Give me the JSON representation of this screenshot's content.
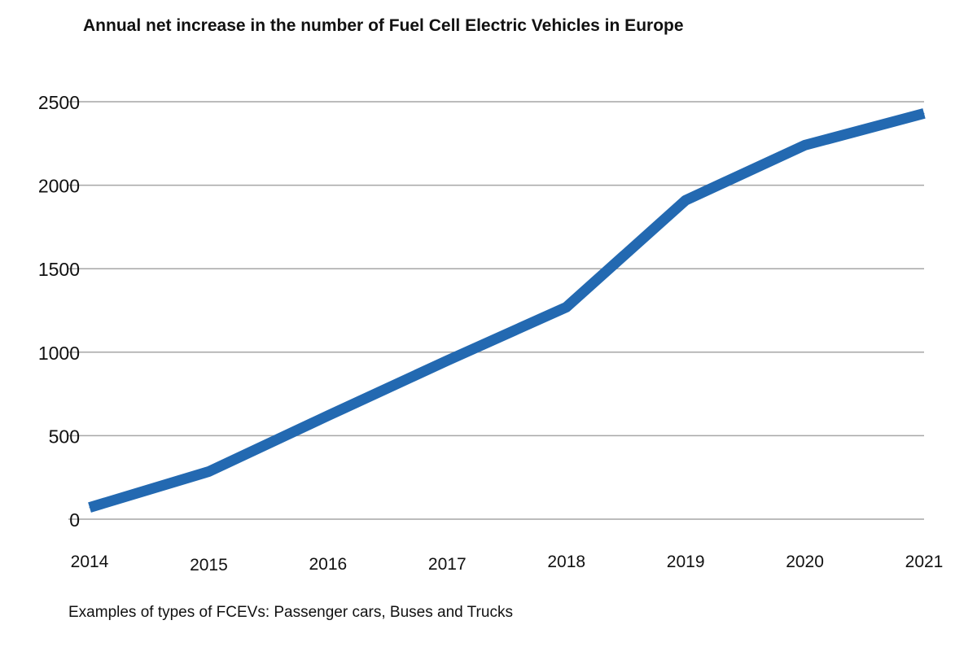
{
  "chart_data": {
    "type": "line",
    "title": "Annual net increase in the number of Fuel Cell Electric Vehicles in Europe",
    "xlabel": "",
    "ylabel": "",
    "categories": [
      "2014",
      "2015",
      "2016",
      "2017",
      "2018",
      "2019",
      "2020",
      "2021"
    ],
    "series": [
      {
        "values": [
          70,
          285,
          620,
          950,
          1270,
          1910,
          2240,
          2430
        ],
        "color": "#2369b1"
      }
    ],
    "ylim": [
      0,
      2500
    ],
    "yticks": [
      0,
      500,
      1000,
      1500,
      2000,
      2500
    ],
    "grid": true,
    "legend": "none"
  },
  "footnote": "Examples of types of FCEVs: Passenger cars, Buses and Trucks"
}
